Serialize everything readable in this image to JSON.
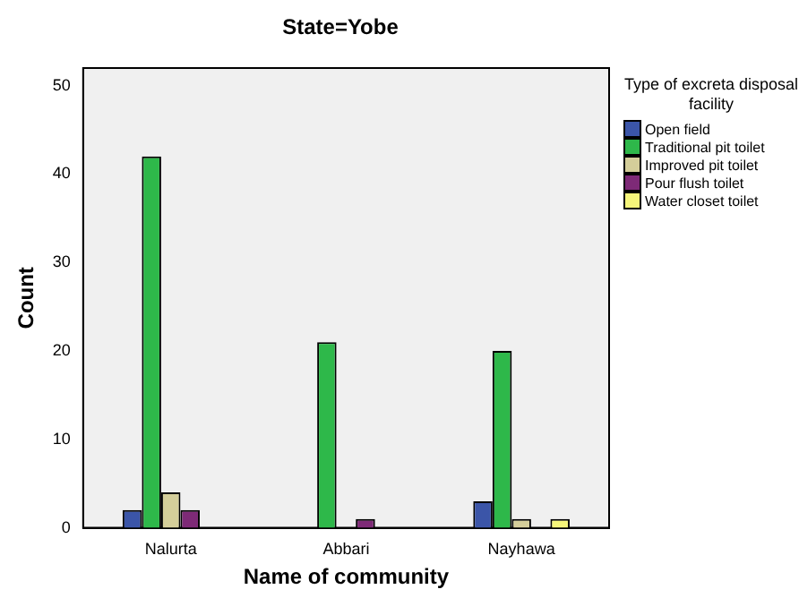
{
  "chart_data": {
    "type": "bar",
    "title": "State=Yobe",
    "xlabel": "Name of community",
    "ylabel": "Count",
    "legend_title": "Type of excreta disposal facility",
    "categories": [
      "Nalurta",
      "Abbari",
      "Nayhawa"
    ],
    "series": [
      {
        "name": "Open field",
        "color": "#3b55a8",
        "values": [
          2,
          null,
          3
        ]
      },
      {
        "name": "Traditional pit toilet",
        "color": "#2eb84a",
        "values": [
          42,
          21,
          20
        ]
      },
      {
        "name": "Improved pit toilet",
        "color": "#d4ce9a",
        "values": [
          4,
          null,
          1
        ]
      },
      {
        "name": "Pour flush toilet",
        "color": "#7e2a77",
        "values": [
          2,
          1,
          null
        ]
      },
      {
        "name": "Water closet toilet",
        "color": "#f5f57a",
        "values": [
          null,
          null,
          1
        ]
      }
    ],
    "ylim": [
      0,
      52
    ],
    "yticks": [
      0,
      10,
      20,
      30,
      40,
      50
    ],
    "grid": false,
    "legend": "right"
  }
}
